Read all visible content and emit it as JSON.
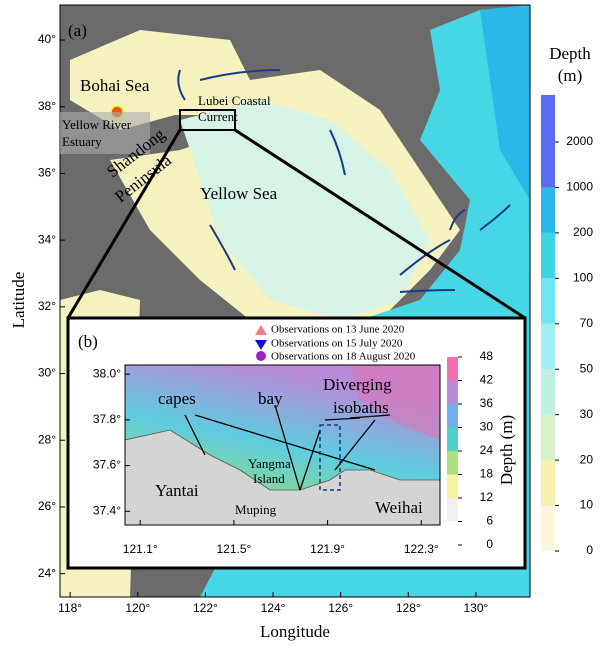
{
  "panel_a": {
    "label": "(a)",
    "xlabel": "Longitude",
    "ylabel": "Latitude",
    "xlim": [
      117.7,
      131.6
    ],
    "ylim": [
      23.3,
      41.05
    ],
    "xticks": [
      {
        "value": 118,
        "label": "118°"
      },
      {
        "value": 120,
        "label": "120°"
      },
      {
        "value": 122,
        "label": "122°"
      },
      {
        "value": 124,
        "label": "124°"
      },
      {
        "value": 126,
        "label": "126°"
      },
      {
        "value": 128,
        "label": "128°"
      },
      {
        "value": 130,
        "label": "130°"
      }
    ],
    "yticks": [
      {
        "value": 24,
        "label": "24°"
      },
      {
        "value": 26,
        "label": "26°"
      },
      {
        "value": 28,
        "label": "28°"
      },
      {
        "value": 30,
        "label": "30°"
      },
      {
        "value": 32,
        "label": "32°"
      },
      {
        "value": 34,
        "label": "34°"
      },
      {
        "value": 36,
        "label": "36°"
      },
      {
        "value": 38,
        "label": "38°"
      },
      {
        "value": 40,
        "label": "40°"
      }
    ],
    "colorbar": {
      "title": [
        "Depth",
        "(m)"
      ],
      "ticks": [
        0,
        10,
        20,
        30,
        50,
        70,
        100,
        200,
        1000,
        2000
      ]
    },
    "annotations": [
      "Bohai Sea",
      "Lubei Coastal",
      "Current",
      "Yellow River",
      "Estuary",
      "Shandong",
      "Peninsula",
      "Yellow Sea"
    ]
  },
  "panel_b": {
    "label": "(b)",
    "xlim": [
      121.035,
      122.38
    ],
    "ylim": [
      37.34,
      38.04
    ],
    "xticks": [
      {
        "value": 121.1,
        "label": "121.1°"
      },
      {
        "value": 121.5,
        "label": "121.5°"
      },
      {
        "value": 121.9,
        "label": "121.9°"
      },
      {
        "value": 122.3,
        "label": "122.3°"
      }
    ],
    "yticks": [
      {
        "value": 37.4,
        "label": "37.4°"
      },
      {
        "value": 37.6,
        "label": "37.6°"
      },
      {
        "value": 37.8,
        "label": "37.8°"
      },
      {
        "value": 38.0,
        "label": "38.0°"
      }
    ],
    "legend": [
      "Observations on 13 June 2020",
      "Observations on 15 July 2020",
      "Observations on 18 August 2020"
    ],
    "colorbar": {
      "title": "Depth (m)",
      "ticks": [
        0,
        6,
        12,
        18,
        24,
        30,
        36,
        42,
        48
      ]
    },
    "annotations": [
      "capes",
      "bay",
      "Diverging",
      "isobaths",
      "Yangma",
      "Island",
      "Yantai",
      "Muping",
      "Weihai"
    ]
  }
}
